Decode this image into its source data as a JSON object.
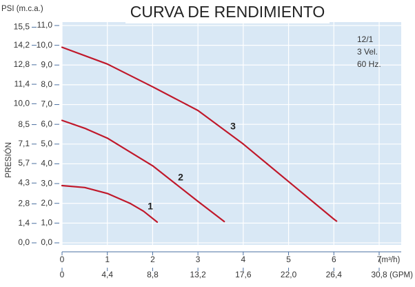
{
  "chart_data": {
    "type": "line",
    "title": "CURVA DE RENDIMIENTO",
    "y_axis_title": "PRESIÓN",
    "y_units_label": "PSI (m.c.a.)",
    "x_units_label": "(m³/h)",
    "x2_units_label": "(GPM)",
    "annotations": [
      "12/1",
      "3 Vel.",
      "60 Hz."
    ],
    "xlim": [
      0,
      7
    ],
    "xticks": [
      0,
      1,
      2,
      3,
      4,
      5,
      6,
      7
    ],
    "x2lim": [
      0,
      30.8
    ],
    "x2ticks": [
      0,
      {
        "value": 4.4,
        "label": "4,4"
      },
      {
        "value": 8.8,
        "label": "8,8"
      },
      {
        "value": 13.2,
        "label": "13,2"
      },
      {
        "value": 17.6,
        "label": "17,6"
      },
      {
        "value": 22.0,
        "label": "22,0"
      },
      {
        "value": 26.4,
        "label": "26,4"
      },
      {
        "value": 30.8,
        "label": "30,8"
      }
    ],
    "ylim": [
      0,
      11
    ],
    "yticks": [
      {
        "value": 0,
        "label": "0,0"
      },
      {
        "value": 1,
        "label": "1,0"
      },
      {
        "value": 2,
        "label": "2,0"
      },
      {
        "value": 3,
        "label": "3,0"
      },
      {
        "value": 4,
        "label": "4,0"
      },
      {
        "value": 5,
        "label": "5,0"
      },
      {
        "value": 6,
        "label": "6,0"
      },
      {
        "value": 7,
        "label": "7,0"
      },
      {
        "value": 8,
        "label": "8,0"
      },
      {
        "value": 9,
        "label": "9,0"
      },
      {
        "value": 10,
        "label": "10,0"
      },
      {
        "value": 11,
        "label": "11,0"
      }
    ],
    "y2lim": [
      0,
      15.62
    ],
    "y2ticks": [
      {
        "value": 0,
        "label": "0,0"
      },
      {
        "value": 1.4,
        "label": "1,4"
      },
      {
        "value": 2.8,
        "label": "2,8"
      },
      {
        "value": 4.3,
        "label": "4,3"
      },
      {
        "value": 5.7,
        "label": "5,7"
      },
      {
        "value": 7.1,
        "label": "7,1"
      },
      {
        "value": 8.5,
        "label": "8,5"
      },
      {
        "value": 10.0,
        "label": "10,0"
      },
      {
        "value": 11.4,
        "label": "11,4"
      },
      {
        "value": 12.8,
        "label": "12,8"
      },
      {
        "value": 14.2,
        "label": "14,2"
      },
      {
        "value": 15.5,
        "label": "15,5"
      }
    ],
    "grid": true,
    "series": [
      {
        "name": "1",
        "color": "#c0182a",
        "x": [
          0,
          0.5,
          1,
          1.5,
          1.8,
          2.1
        ],
        "values": [
          2.9,
          2.8,
          2.5,
          2.0,
          1.6,
          1.05
        ]
      },
      {
        "name": "2",
        "color": "#c0182a",
        "x": [
          0,
          0.5,
          1,
          1.5,
          2,
          2.5,
          3,
          3.58
        ],
        "values": [
          6.2,
          5.8,
          5.3,
          4.6,
          3.9,
          3.0,
          2.1,
          1.08
        ]
      },
      {
        "name": "3",
        "color": "#c0182a",
        "x": [
          0,
          1,
          2,
          3,
          4,
          5,
          6,
          6.06
        ],
        "values": [
          9.9,
          9.05,
          7.9,
          6.7,
          5.0,
          3.1,
          1.2,
          1.1
        ]
      }
    ]
  }
}
